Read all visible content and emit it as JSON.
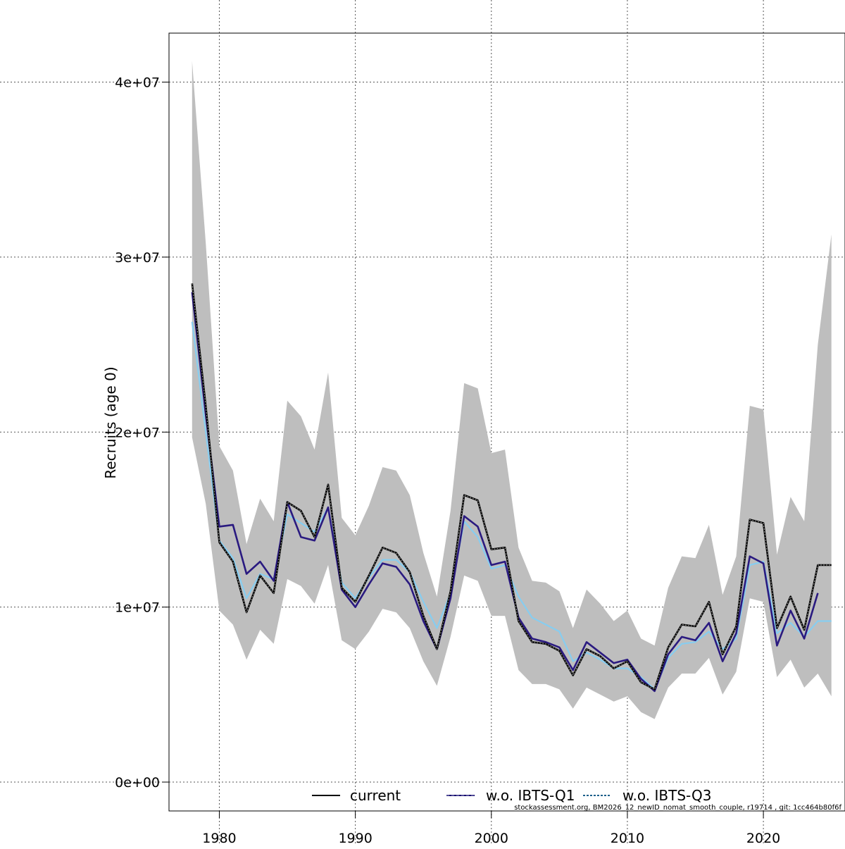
{
  "chart_data": {
    "type": "line",
    "ylabel": "Recruits (age 0)",
    "xlabel": "",
    "title": "",
    "xlim": [
      1976.3,
      2026.0
    ],
    "ylim": [
      -1650000,
      42800000
    ],
    "x_ticks": [
      1980,
      1990,
      2000,
      2010,
      2020
    ],
    "x_tick_labels": [
      "1980",
      "1990",
      "2000",
      "2010",
      "2020"
    ],
    "y_ticks": [
      0,
      10000000,
      20000000,
      30000000,
      40000000
    ],
    "y_tick_labels": [
      "0e+00",
      "1e+07",
      "2e+07",
      "3e+07",
      "4e+07"
    ],
    "grid": true,
    "legend": {
      "placement": "bottom",
      "items": [
        {
          "label": "current",
          "color": "#000000",
          "style": "solid"
        },
        {
          "label": "w.o. IBTS-Q1",
          "color": "#1a1070",
          "style": "solid-dashed"
        },
        {
          "label": "w.o. IBTS-Q3",
          "color": "#1a5f8a",
          "style": "dotted-dashed"
        }
      ]
    },
    "footer_note": "stockassessment.org, BM2026_12_newID_nomat_smooth_couple, r19714 , git: 1cc464b80f6f",
    "x": [
      1978,
      1979,
      1980,
      1981,
      1982,
      1983,
      1984,
      1985,
      1986,
      1987,
      1988,
      1989,
      1990,
      1991,
      1992,
      1993,
      1994,
      1995,
      1996,
      1997,
      1998,
      1999,
      2000,
      2001,
      2002,
      2003,
      2004,
      2005,
      2006,
      2007,
      2008,
      2009,
      2010,
      2011,
      2012,
      2013,
      2014,
      2015,
      2016,
      2017,
      2018,
      2019,
      2020,
      2021,
      2022,
      2023,
      2024,
      2025
    ],
    "band": {
      "upper": [
        41200000,
        30800000,
        19200000,
        17800000,
        13600000,
        16200000,
        14900000,
        21800000,
        20900000,
        19000000,
        23400000,
        15100000,
        14100000,
        15800000,
        18000000,
        17800000,
        16400000,
        13100000,
        10600000,
        15500000,
        22800000,
        22500000,
        18800000,
        19000000,
        13400000,
        11500000,
        11400000,
        10900000,
        8800000,
        11000000,
        10200000,
        9200000,
        9800000,
        8200000,
        7800000,
        11100000,
        12900000,
        12800000,
        14700000,
        10700000,
        12900000,
        21500000,
        21300000,
        13000000,
        16300000,
        14900000,
        25000000,
        31300000
      ],
      "lower": [
        19700000,
        15900000,
        9800000,
        9000000,
        7000000,
        8700000,
        7900000,
        11600000,
        11200000,
        10200000,
        12400000,
        8100000,
        7600000,
        8600000,
        9900000,
        9700000,
        8800000,
        6900000,
        5500000,
        8300000,
        11800000,
        11500000,
        9500000,
        9500000,
        6400000,
        5600000,
        5600000,
        5300000,
        4200000,
        5400000,
        5000000,
        4600000,
        4900000,
        4000000,
        3600000,
        5400000,
        6200000,
        6200000,
        7100000,
        5000000,
        6300000,
        10500000,
        10300000,
        6000000,
        7000000,
        5400000,
        6200000,
        4900000
      ]
    },
    "series": [
      {
        "name": "current",
        "color": "#000000",
        "values": [
          28500000,
          21500000,
          13700000,
          12600000,
          9700000,
          11800000,
          10800000,
          16000000,
          15500000,
          14000000,
          17000000,
          11100000,
          10300000,
          11800000,
          13400000,
          13100000,
          12000000,
          9500000,
          7600000,
          10900000,
          16400000,
          16100000,
          13300000,
          13400000,
          9200000,
          8000000,
          7900000,
          7500000,
          6100000,
          7600000,
          7200000,
          6500000,
          6900000,
          5700000,
          5300000,
          7700000,
          9000000,
          8900000,
          10300000,
          7300000,
          8900000,
          15000000,
          14800000,
          8800000,
          10600000,
          8700000,
          12400000,
          12400000
        ]
      },
      {
        "name": "w.o. IBTS-Q1",
        "color": "#2a1a80",
        "values": [
          28000000,
          21000000,
          14600000,
          14700000,
          11900000,
          12600000,
          11500000,
          16000000,
          14000000,
          13800000,
          15700000,
          11000000,
          10000000,
          11300000,
          12500000,
          12300000,
          11300000,
          9200000,
          7600000,
          10500000,
          15200000,
          14600000,
          12400000,
          12600000,
          9400000,
          8200000,
          8000000,
          7700000,
          6400000,
          8000000,
          7400000,
          6800000,
          7000000,
          5900000,
          5200000,
          7300000,
          8300000,
          8100000,
          9100000,
          6900000,
          8500000,
          12900000,
          12500000,
          7800000,
          9800000,
          8200000,
          10800000,
          null
        ]
      },
      {
        "name": "w.o. IBTS-Q3",
        "color": "#87cdf0",
        "values": [
          26300000,
          20000000,
          13800000,
          12800000,
          10500000,
          11900000,
          11600000,
          15300000,
          14800000,
          14300000,
          15700000,
          11400000,
          10500000,
          11700000,
          12700000,
          12700000,
          12000000,
          10300000,
          8800000,
          10800000,
          14900000,
          14000000,
          12200000,
          12400000,
          10600000,
          9400000,
          9000000,
          8600000,
          6900000,
          7400000,
          7000000,
          6500000,
          6500000,
          6000000,
          5300000,
          7100000,
          7900000,
          8000000,
          8600000,
          7600000,
          8200000,
          12400000,
          12600000,
          8500000,
          9100000,
          8300000,
          9200000,
          9200000
        ]
      }
    ]
  }
}
